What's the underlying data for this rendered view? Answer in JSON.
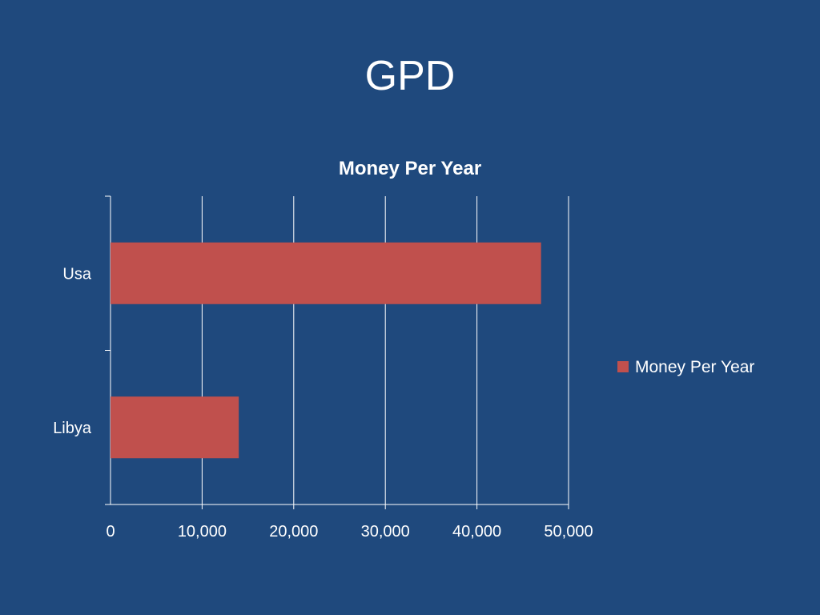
{
  "slide": {
    "title": "GPD"
  },
  "chart_data": {
    "type": "bar",
    "orientation": "horizontal",
    "title": "Money Per Year",
    "xlabel": "",
    "ylabel": "",
    "categories": [
      "Usa",
      "Libya"
    ],
    "series": [
      {
        "name": "Money Per Year",
        "color": "#c0504d",
        "values": [
          47000,
          14000
        ]
      }
    ],
    "xlim": [
      0,
      50000
    ],
    "ticks": [
      0,
      10000,
      20000,
      30000,
      40000,
      50000
    ],
    "tick_labels": [
      "0",
      "10,000",
      "20,000",
      "30,000",
      "40,000",
      "50,000"
    ],
    "grid": true,
    "legend_position": "right"
  },
  "colors": {
    "background": "#1f497d",
    "bar": "#c0504d",
    "axis": "#ffffff"
  }
}
